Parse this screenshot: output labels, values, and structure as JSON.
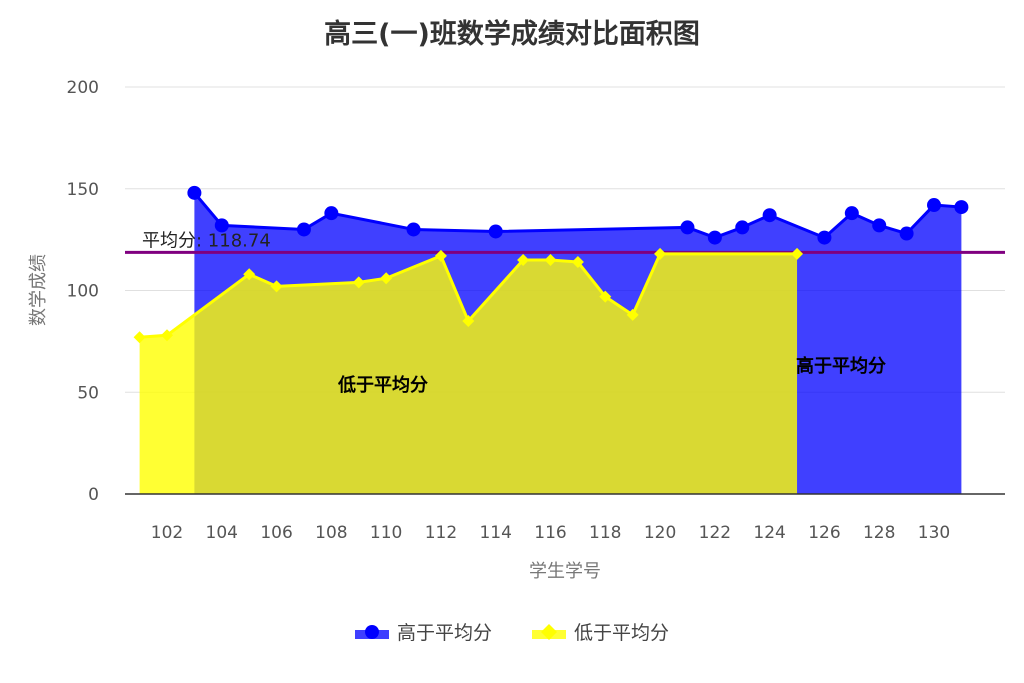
{
  "title": "高三(一)班数学成绩对比面积图",
  "average_label": "平均分: 118.74",
  "legend": [
    {
      "label": "高于平均分",
      "color": "#0000ff",
      "icon": "circle-line-icon"
    },
    {
      "label": "低于平均分",
      "color": "#ffff00",
      "icon": "diamond-line-icon"
    }
  ],
  "area_labels": {
    "below": "低于平均分",
    "above": "高于平均分"
  },
  "chart_data": {
    "type": "area",
    "title": "高三(一)班数学成绩对比面积图",
    "xlabel": "学生学号",
    "ylabel": "数学成绩",
    "ylim": [
      0,
      200
    ],
    "yticks": [
      0,
      50,
      100,
      150,
      200
    ],
    "xticks": [
      102,
      104,
      106,
      108,
      110,
      112,
      114,
      116,
      118,
      120,
      122,
      124,
      126,
      128,
      130
    ],
    "xlim": [
      100,
      132
    ],
    "grid": true,
    "legend_position": "bottom",
    "average": 118.74,
    "series": [
      {
        "name": "高于平均分",
        "color": "#0000ff",
        "fill": "rgba(0,0,255,0.75)",
        "marker": "circle",
        "x": [
          103,
          104,
          107,
          108,
          111,
          114,
          121,
          122,
          123,
          124,
          126,
          127,
          128,
          129,
          130,
          131
        ],
        "values": [
          148,
          132,
          130,
          138,
          130,
          129,
          131,
          126,
          131,
          137,
          126,
          138,
          132,
          128,
          142,
          141
        ]
      },
      {
        "name": "低于平均分",
        "color": "#ffff00",
        "fill": "rgba(255,255,0,0.8)",
        "marker": "diamond",
        "x": [
          101,
          102,
          105,
          106,
          109,
          110,
          112,
          113,
          115,
          116,
          117,
          118,
          119,
          120,
          125
        ],
        "values": [
          77,
          78,
          108,
          102,
          104,
          106,
          117,
          85,
          115,
          115,
          114,
          97,
          88,
          118,
          118
        ]
      }
    ],
    "annotations": [
      {
        "text": "平均分: 118.74",
        "type": "hline",
        "y": 118.74,
        "color": "#800080"
      },
      {
        "text": "低于平均分",
        "x": 110,
        "y": 55
      },
      {
        "text": "高于平均分",
        "x": 127,
        "y": 63
      }
    ]
  }
}
